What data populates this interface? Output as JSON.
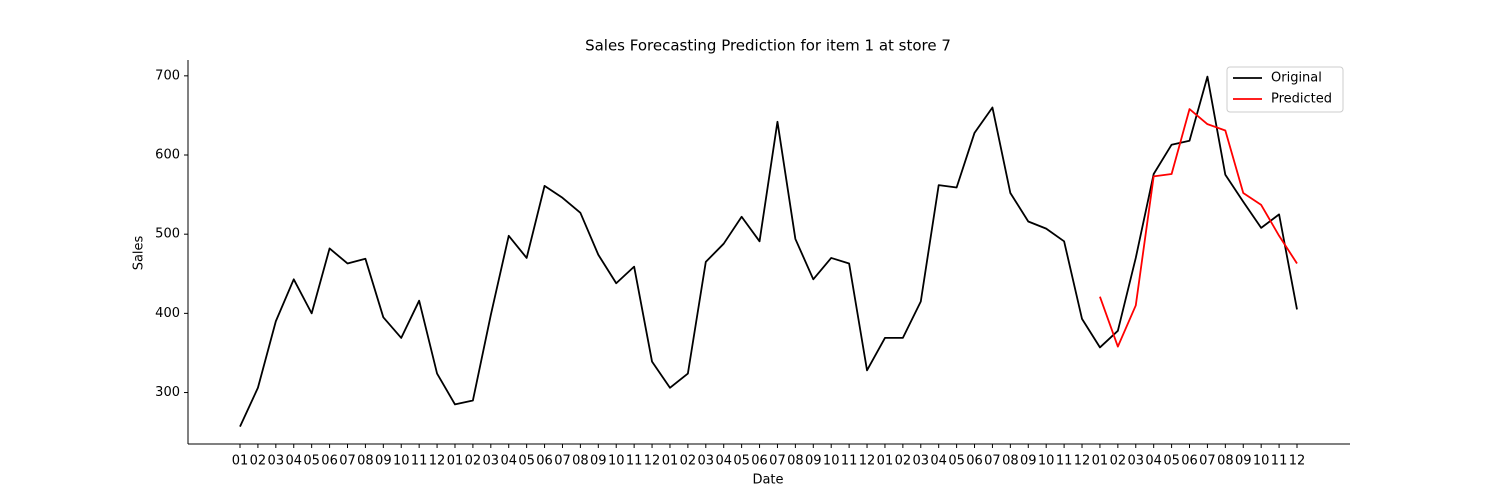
{
  "chart_data": {
    "type": "line",
    "title": "Sales Forecasting Prediction for item 1 at store 7",
    "x_label": "Date",
    "y_label": "Sales",
    "categories": [
      "01",
      "02",
      "03",
      "04",
      "05",
      "06",
      "07",
      "08",
      "09",
      "10",
      "11",
      "12",
      "01",
      "02",
      "03",
      "04",
      "05",
      "06",
      "07",
      "08",
      "09",
      "10",
      "11",
      "12",
      "01",
      "02",
      "03",
      "04",
      "05",
      "06",
      "07",
      "08",
      "09",
      "10",
      "11",
      "12",
      "01",
      "02",
      "03",
      "04",
      "05",
      "06",
      "07",
      "08",
      "09",
      "10",
      "11",
      "12",
      "01",
      "02",
      "03",
      "04",
      "05",
      "06",
      "07",
      "08",
      "09",
      "10",
      "11",
      "12"
    ],
    "series": [
      {
        "name": "Original",
        "color": "#000000",
        "values": [
          257,
          306,
          390,
          443,
          400,
          482,
          463,
          469,
          395,
          369,
          416,
          324,
          285,
          290,
          398,
          498,
          470,
          561,
          546,
          527,
          474,
          438,
          459,
          339,
          306,
          324,
          465,
          488,
          522,
          491,
          642,
          494,
          443,
          470,
          463,
          328,
          369,
          369,
          415,
          562,
          559,
          628,
          660,
          552,
          516,
          507,
          491,
          393,
          357,
          378,
          470,
          576,
          613,
          618,
          699,
          575,
          541,
          508,
          525,
          405
        ]
      },
      {
        "name": "Predicted",
        "color": "#ff0000",
        "values": [
          null,
          null,
          null,
          null,
          null,
          null,
          null,
          null,
          null,
          null,
          null,
          null,
          null,
          null,
          null,
          null,
          null,
          null,
          null,
          null,
          null,
          null,
          null,
          null,
          null,
          null,
          null,
          null,
          null,
          null,
          null,
          null,
          null,
          null,
          null,
          null,
          null,
          null,
          null,
          null,
          null,
          null,
          null,
          null,
          null,
          null,
          null,
          null,
          421,
          358,
          410,
          573,
          576,
          658,
          639,
          631,
          552,
          537,
          498,
          463
        ]
      }
    ],
    "ylim": [
      235,
      720
    ],
    "yticks": [
      300,
      400,
      500,
      600,
      700
    ],
    "grid": false,
    "legend": "upper right"
  }
}
